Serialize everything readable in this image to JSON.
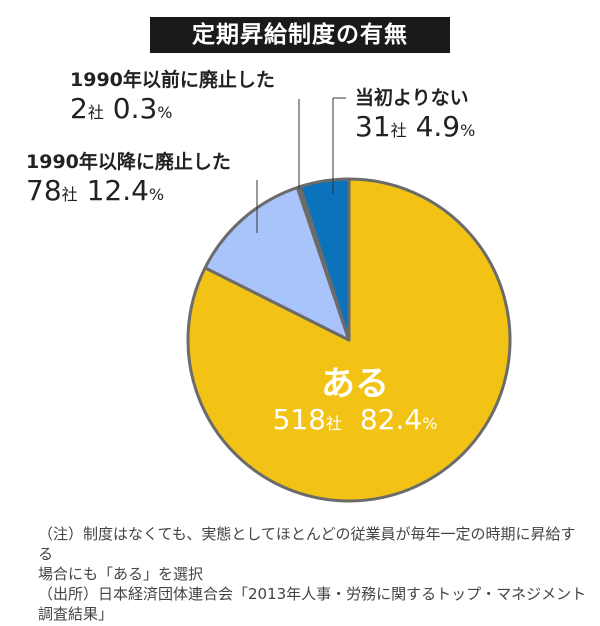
{
  "title": "定期昇給制度の有無",
  "chart_data": {
    "type": "pie",
    "title": "定期昇給制度の有無",
    "start": "top",
    "direction": "clockwise",
    "slices": [
      {
        "label": "ある",
        "count": "518",
        "unit": "社",
        "percent_text": "82.4",
        "pct_sign": "%",
        "value": 82.4,
        "color": "#F2C314"
      },
      {
        "label": "1990年以降に廃止した",
        "count": "78",
        "unit": "社",
        "percent_text": "12.4",
        "pct_sign": "%",
        "value": 12.4,
        "color": "#A9C4FA"
      },
      {
        "label": "1990年以前に廃止した",
        "count": "2",
        "unit": "社",
        "percent_text": "0.3",
        "pct_sign": "%",
        "value": 0.3,
        "color": "#6E97F0"
      },
      {
        "label": "当初よりない",
        "count": "31",
        "unit": "社",
        "percent_text": "4.9",
        "pct_sign": "%",
        "value": 4.9,
        "color": "#0B72BC"
      }
    ],
    "border_color": "#6b6b6b"
  },
  "notes": [
    "（注）制度はなくても、実態としてほとんどの従業員が毎年一定の時期に昇給する",
    "場合にも「ある」を選択",
    "（出所）日本経済団体連合会「2013年人事・労務に関するトップ・マネジメント",
    "調査結果」"
  ]
}
